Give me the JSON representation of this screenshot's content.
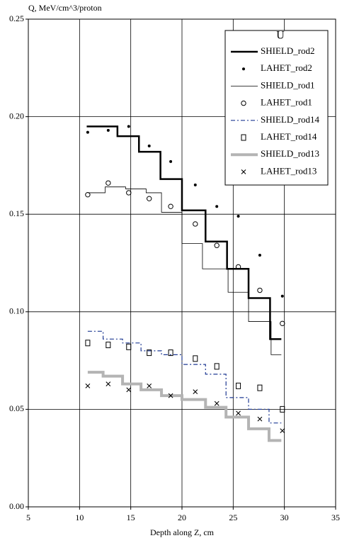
{
  "chart_data": {
    "type": "line",
    "ylabel": "Q, MeV/cm^3/proton",
    "xlabel": "Depth along Z, cm",
    "legend_title": "U",
    "legend": "upper right",
    "grid": true,
    "xlim": [
      5,
      35
    ],
    "xticks": [
      5,
      10,
      15,
      20,
      25,
      30,
      35
    ],
    "ylim": [
      0,
      0.25
    ],
    "yticks": [
      {
        "value": 0,
        "label": "0.00"
      },
      {
        "value": 0.05,
        "label": "0.05"
      },
      {
        "value": 0.1,
        "label": "0.10"
      },
      {
        "value": 0.15,
        "label": "0.15"
      },
      {
        "value": 0.2,
        "label": "0.20"
      },
      {
        "value": 0.25,
        "label": "0.25"
      }
    ],
    "series": [
      {
        "name": "SHIELD_rod2",
        "color": "#000000",
        "linewidth": 2.5,
        "x": [
          10.7,
          13.7,
          13.7,
          15.8,
          15.8,
          17.9,
          17.9,
          20.0,
          20.0,
          22.3,
          22.3,
          24.4,
          24.4,
          26.5,
          26.5,
          28.6,
          28.6,
          29.7
        ],
        "values": [
          0.195,
          0.195,
          0.19,
          0.19,
          0.182,
          0.182,
          0.168,
          0.168,
          0.152,
          0.152,
          0.136,
          0.136,
          0.122,
          0.122,
          0.107,
          0.107,
          0.086,
          0.086
        ]
      },
      {
        "name": "LAHET_rod2",
        "color": "#000000",
        "marker": "dot",
        "x": [
          10.8,
          12.8,
          14.8,
          16.8,
          18.9,
          21.3,
          23.4,
          25.5,
          27.6,
          29.8
        ],
        "values": [
          0.192,
          0.193,
          0.195,
          0.185,
          0.177,
          0.165,
          0.154,
          0.149,
          0.129,
          0.108
        ]
      },
      {
        "name": "SHIELD_rod1",
        "color": "#000000",
        "linewidth": 0.8,
        "x": [
          10.8,
          12.5,
          12.5,
          14.5,
          14.5,
          16.5,
          16.5,
          18.0,
          18.0,
          20.0,
          20.0,
          22.0,
          22.0,
          24.5,
          24.5,
          26.5,
          26.5,
          28.7,
          28.7,
          29.7
        ],
        "values": [
          0.161,
          0.161,
          0.164,
          0.164,
          0.163,
          0.163,
          0.161,
          0.161,
          0.151,
          0.151,
          0.135,
          0.135,
          0.122,
          0.122,
          0.11,
          0.11,
          0.095,
          0.095,
          0.078,
          0.078
        ]
      },
      {
        "name": "LAHET_rod1",
        "color": "#000000",
        "marker": "circle",
        "x": [
          10.8,
          12.8,
          14.8,
          16.8,
          18.9,
          21.3,
          23.4,
          25.5,
          27.6,
          29.8
        ],
        "values": [
          0.16,
          0.166,
          0.161,
          0.158,
          0.154,
          0.145,
          0.134,
          0.123,
          0.111,
          0.094
        ]
      },
      {
        "name": "SHIELD_rod14",
        "color": "#1f3a93",
        "linewidth": 1.2,
        "dash": "6 3 2 3",
        "x": [
          10.8,
          12.3,
          12.3,
          14.2,
          14.2,
          16.0,
          16.0,
          18.0,
          18.0,
          20.0,
          20.0,
          22.3,
          22.3,
          24.3,
          24.3,
          26.5,
          26.5,
          28.5,
          28.5,
          29.7
        ],
        "values": [
          0.09,
          0.09,
          0.086,
          0.086,
          0.084,
          0.084,
          0.08,
          0.08,
          0.078,
          0.078,
          0.073,
          0.073,
          0.068,
          0.068,
          0.056,
          0.056,
          0.05,
          0.05,
          0.043,
          0.043
        ]
      },
      {
        "name": "LAHET_rod14",
        "color": "#000000",
        "marker": "square",
        "x": [
          10.8,
          12.8,
          14.8,
          16.8,
          18.9,
          21.3,
          23.4,
          25.5,
          27.6,
          29.8
        ],
        "values": [
          0.084,
          0.083,
          0.082,
          0.079,
          0.079,
          0.076,
          0.072,
          0.062,
          0.061,
          0.05
        ]
      },
      {
        "name": "SHIELD_rod13",
        "color": "#b4b4b4",
        "linewidth": 4,
        "x": [
          10.8,
          12.3,
          12.3,
          14.2,
          14.2,
          16.0,
          16.0,
          18.0,
          18.0,
          20.0,
          20.0,
          22.3,
          22.3,
          24.3,
          24.3,
          26.5,
          26.5,
          28.5,
          28.5,
          29.7
        ],
        "values": [
          0.069,
          0.069,
          0.067,
          0.067,
          0.063,
          0.063,
          0.06,
          0.06,
          0.057,
          0.057,
          0.055,
          0.055,
          0.051,
          0.051,
          0.046,
          0.046,
          0.04,
          0.04,
          0.034,
          0.034
        ]
      },
      {
        "name": "LAHET_rod13",
        "color": "#000000",
        "marker": "cross",
        "x": [
          10.8,
          12.8,
          14.8,
          16.8,
          18.9,
          21.3,
          23.4,
          25.5,
          27.6,
          29.8
        ],
        "values": [
          0.062,
          0.063,
          0.06,
          0.062,
          0.057,
          0.059,
          0.053,
          0.048,
          0.045,
          0.039
        ]
      }
    ]
  }
}
